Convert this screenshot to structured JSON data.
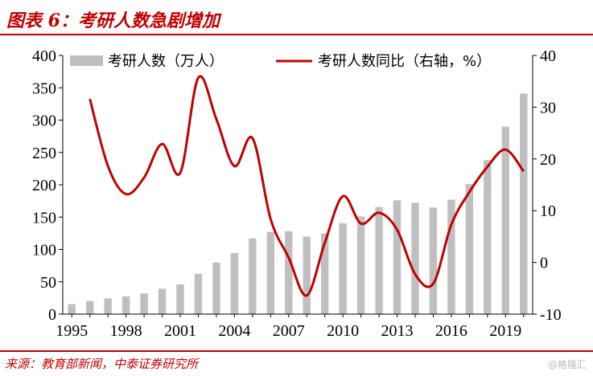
{
  "header": {
    "title": "图表 6：考研人数急剧增加"
  },
  "footer": {
    "source": "来源：教育部新闻，中泰证券研究所",
    "watermark": "@格隆汇"
  },
  "colors": {
    "accent": "#c00000",
    "bar": "#bfbfbf",
    "line": "#c00000"
  },
  "chart_data": {
    "type": "bar",
    "x": [
      1995,
      1996,
      1997,
      1998,
      1999,
      2000,
      2001,
      2002,
      2003,
      2004,
      2005,
      2006,
      2007,
      2008,
      2009,
      2010,
      2011,
      2012,
      2013,
      2014,
      2015,
      2016,
      2017,
      2018,
      2019,
      2020
    ],
    "x_ticks": [
      "1995",
      "1998",
      "2001",
      "2004",
      "2007",
      "2010",
      "2013",
      "2016",
      "2019"
    ],
    "ylim": [
      0,
      400
    ],
    "y_ticks": [
      "0",
      "50",
      "100",
      "150",
      "200",
      "250",
      "300",
      "350",
      "400"
    ],
    "y2lim": [
      -10,
      40
    ],
    "y2_ticks": [
      "-10",
      "0",
      "10",
      "20",
      "30",
      "40"
    ],
    "series": [
      {
        "name": "考研人数（万人）",
        "type": "bar",
        "axis": "left",
        "values": [
          15.5,
          20.4,
          24.2,
          27.4,
          31.9,
          39.2,
          46,
          62.4,
          79.7,
          94.5,
          117.2,
          127.1,
          128.2,
          120,
          124.6,
          140.6,
          151.1,
          165.6,
          176,
          172,
          164.9,
          177,
          201,
          238,
          290,
          341
        ]
      },
      {
        "name": "考研人数同比（右轴，%）",
        "type": "line",
        "axis": "right",
        "smooth": true,
        "x": [
          1996,
          1997,
          1998,
          1999,
          2000,
          2001,
          2002,
          2003,
          2004,
          2005,
          2006,
          2007,
          2008,
          2009,
          2010,
          2011,
          2012,
          2013,
          2014,
          2015,
          2016,
          2017,
          2018,
          2019,
          2020
        ],
        "values": [
          31.6,
          18.6,
          13.2,
          16.4,
          22.9,
          17.3,
          35.7,
          27.7,
          18.6,
          24.0,
          8.4,
          0.9,
          -6.4,
          3.8,
          12.8,
          7.5,
          9.6,
          6.3,
          -2.3,
          -4.1,
          7.3,
          13.6,
          18.5,
          21.8,
          17.6
        ]
      }
    ],
    "legend": "top",
    "grid": false
  }
}
